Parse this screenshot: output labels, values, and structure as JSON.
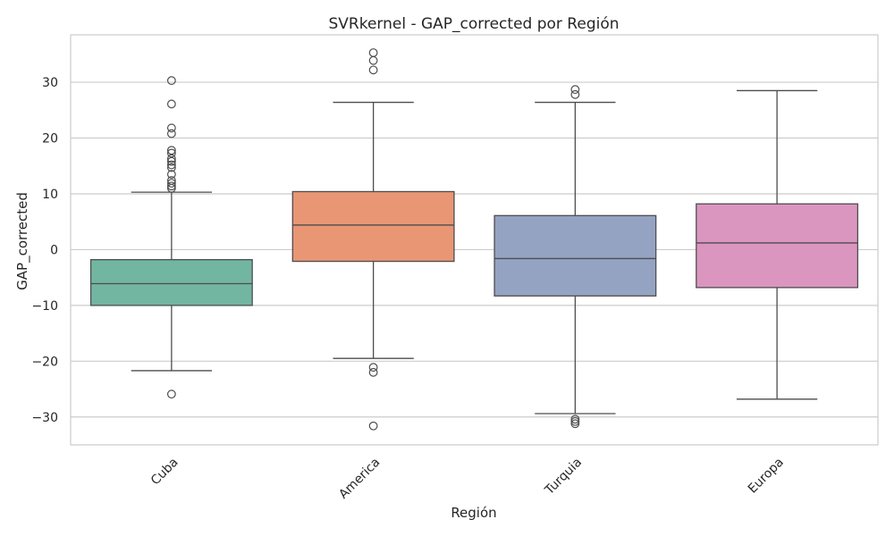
{
  "chart_data": {
    "type": "box",
    "title": "SVRkernel - GAP_corrected por Región",
    "xlabel": "Región",
    "ylabel": "GAP_corrected",
    "ylim": [
      -35,
      38.5
    ],
    "yticks": [
      -30,
      -20,
      -10,
      0,
      10,
      20,
      30
    ],
    "ytick_labels": [
      "−30",
      "−20",
      "−10",
      "0",
      "10",
      "20",
      "30"
    ],
    "grid": true,
    "categories": [
      "Cuba",
      "America",
      "Turquia",
      "Europa"
    ],
    "boxes": [
      {
        "category": "Cuba",
        "color": "#72b6a1",
        "whisker_low": -21.7,
        "q1": -10.0,
        "median": -6.1,
        "q3": -1.8,
        "whisker_high": 10.3,
        "outliers": [
          30.3,
          26.1,
          21.8,
          20.8,
          17.8,
          17.3,
          16.3,
          15.8,
          15.2,
          14.7,
          13.5,
          12.4,
          11.9,
          11.4,
          11.0,
          -25.9
        ]
      },
      {
        "category": "America",
        "color": "#e99675",
        "whisker_low": -19.5,
        "q1": -2.1,
        "median": 4.4,
        "q3": 10.4,
        "whisker_high": 26.4,
        "outliers": [
          35.3,
          33.9,
          32.2,
          -21.1,
          -22.0,
          -31.6
        ]
      },
      {
        "category": "Turquia",
        "color": "#95a3c3",
        "whisker_low": -29.4,
        "q1": -8.3,
        "median": -1.6,
        "q3": 6.1,
        "whisker_high": 26.4,
        "outliers": [
          28.7,
          27.8,
          -30.4,
          -30.8,
          -31.2
        ]
      },
      {
        "category": "Europa",
        "color": "#db96c0",
        "whisker_low": -26.8,
        "q1": -6.8,
        "median": 1.2,
        "q3": 8.2,
        "whisker_high": 28.5,
        "outliers": []
      }
    ],
    "colors": {
      "line": "#4d4d4d",
      "grid": "#cccccc",
      "frame": "#cccccc"
    }
  }
}
